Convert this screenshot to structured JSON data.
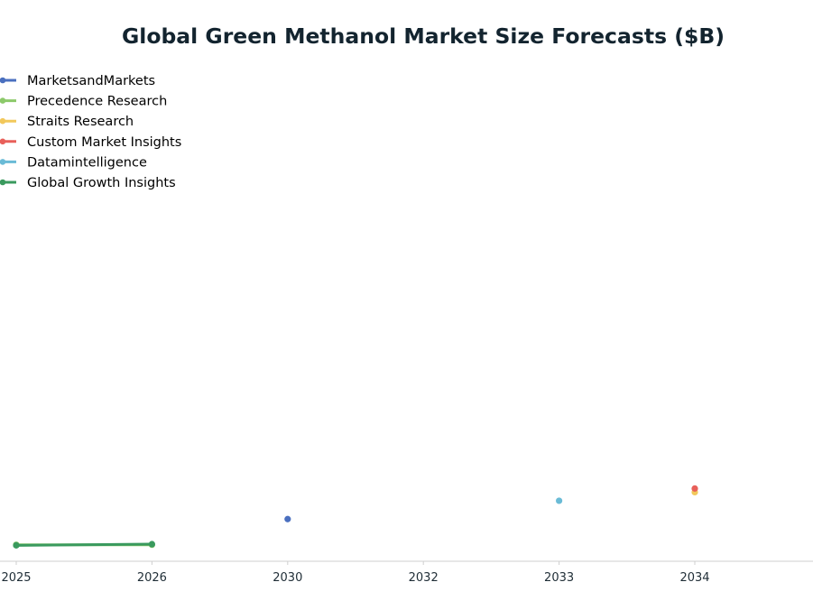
{
  "chart_data": {
    "type": "line",
    "title": "Global Green Methanol Market Size Forecasts ($B)",
    "xlabel": "",
    "ylabel": "",
    "categories": [
      "2025",
      "2026",
      "2030",
      "2032",
      "2033",
      "2034"
    ],
    "ylim": [
      0,
      8
    ],
    "grid": false,
    "legend_position": "top-left",
    "series": [
      {
        "name": "MarketsandMarkets",
        "color": "#4a6fbf",
        "points": [
          {
            "x": "2030",
            "y": 0.69
          }
        ]
      },
      {
        "name": "Precedence Research",
        "color": "#8cc96a",
        "points": [
          {
            "x": "2025",
            "y": 0.27
          },
          {
            "x": "2026",
            "y": 0.27
          }
        ]
      },
      {
        "name": "Straits Research",
        "color": "#f2c85b",
        "points": [
          {
            "x": "2034",
            "y": 1.13
          }
        ]
      },
      {
        "name": "Custom Market Insights",
        "color": "#e8605a",
        "points": [
          {
            "x": "2034",
            "y": 1.19
          }
        ]
      },
      {
        "name": "Datamintelligence",
        "color": "#6abbd6",
        "points": [
          {
            "x": "2033",
            "y": 0.99
          }
        ]
      },
      {
        "name": "Global Growth Insights",
        "color": "#3a9a5e",
        "points": [
          {
            "x": "2025",
            "y": 0.26
          },
          {
            "x": "2026",
            "y": 0.28
          }
        ]
      }
    ]
  }
}
